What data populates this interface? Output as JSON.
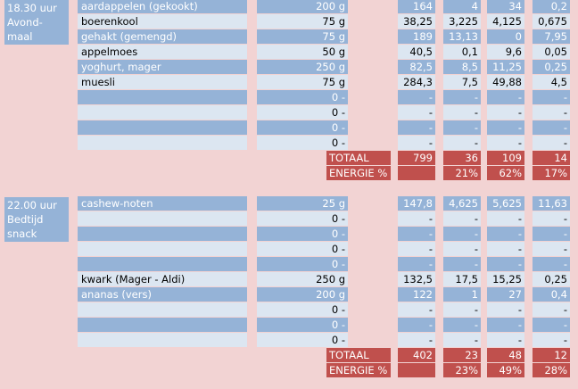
{
  "meals": [
    {
      "label_lines": [
        "18.30 uur",
        "Avond-",
        "maal"
      ],
      "rows": [
        {
          "food": "aardappelen (gekookt)",
          "amount": "200 g",
          "kcal": "164",
          "eiwit": "4",
          "kh": "34",
          "vet": "0,2",
          "style": "blue"
        },
        {
          "food": "boerenkool",
          "amount": "75 g",
          "kcal": "38,25",
          "eiwit": "3,225",
          "kh": "4,125",
          "vet": "0,675",
          "style": "light"
        },
        {
          "food": "gehakt (gemengd)",
          "amount": "75 g",
          "kcal": "189",
          "eiwit": "13,13",
          "kh": "0",
          "vet": "7,95",
          "style": "blue"
        },
        {
          "food": "appelmoes",
          "amount": "50 g",
          "kcal": "40,5",
          "eiwit": "0,1",
          "kh": "9,6",
          "vet": "0,05",
          "style": "light"
        },
        {
          "food": "yoghurt, mager",
          "amount": "250 g",
          "kcal": "82,5",
          "eiwit": "8,5",
          "kh": "11,25",
          "vet": "0,25",
          "style": "blue"
        },
        {
          "food": "muesli",
          "amount": "75 g",
          "kcal": "284,3",
          "eiwit": "7,5",
          "kh": "49,88",
          "vet": "4,5",
          "style": "light"
        },
        {
          "food": "",
          "amount": "0 -",
          "kcal": "-",
          "eiwit": "-",
          "kh": "-",
          "vet": "-",
          "style": "blue"
        },
        {
          "food": "",
          "amount": "0 -",
          "kcal": "-",
          "eiwit": "-",
          "kh": "-",
          "vet": "-",
          "style": "light"
        },
        {
          "food": "",
          "amount": "0 -",
          "kcal": "-",
          "eiwit": "-",
          "kh": "-",
          "vet": "-",
          "style": "blue"
        },
        {
          "food": "",
          "amount": "0 -",
          "kcal": "-",
          "eiwit": "-",
          "kh": "-",
          "vet": "-",
          "style": "light"
        }
      ],
      "totaal": {
        "label": "TOTAAL",
        "kcal": "799",
        "eiwit": "36",
        "kh": "109",
        "vet": "14"
      },
      "energie": {
        "label": "ENERGIE %",
        "kcal": "",
        "eiwit": "21%",
        "kh": "62%",
        "vet": "17%"
      }
    },
    {
      "label_lines": [
        "22.00 uur",
        "Bedtijd",
        "snack"
      ],
      "rows": [
        {
          "food": "cashew-noten",
          "amount": "25 g",
          "kcal": "147,8",
          "eiwit": "4,625",
          "kh": "5,625",
          "vet": "11,63",
          "style": "blue"
        },
        {
          "food": "",
          "amount": "0 -",
          "kcal": "-",
          "eiwit": "-",
          "kh": "-",
          "vet": "-",
          "style": "light"
        },
        {
          "food": "",
          "amount": "0 -",
          "kcal": "-",
          "eiwit": "-",
          "kh": "-",
          "vet": "-",
          "style": "blue"
        },
        {
          "food": "",
          "amount": "0 -",
          "kcal": "-",
          "eiwit": "-",
          "kh": "-",
          "vet": "-",
          "style": "light"
        },
        {
          "food": "",
          "amount": "0 -",
          "kcal": "-",
          "eiwit": "-",
          "kh": "-",
          "vet": "-",
          "style": "blue"
        },
        {
          "food": "kwark (Mager - Aldi)",
          "amount": "250 g",
          "kcal": "132,5",
          "eiwit": "17,5",
          "kh": "15,25",
          "vet": "0,25",
          "style": "light"
        },
        {
          "food": "ananas (vers)",
          "amount": "200 g",
          "kcal": "122",
          "eiwit": "1",
          "kh": "27",
          "vet": "0,4",
          "style": "blue"
        },
        {
          "food": "",
          "amount": "0 -",
          "kcal": "-",
          "eiwit": "-",
          "kh": "-",
          "vet": "-",
          "style": "light"
        },
        {
          "food": "",
          "amount": "0 -",
          "kcal": "-",
          "eiwit": "-",
          "kh": "-",
          "vet": "-",
          "style": "blue"
        },
        {
          "food": "",
          "amount": "0 -",
          "kcal": "-",
          "eiwit": "-",
          "kh": "-",
          "vet": "-",
          "style": "light"
        }
      ],
      "totaal": {
        "label": "TOTAAL",
        "kcal": "402",
        "eiwit": "23",
        "kh": "48",
        "vet": "12"
      },
      "energie": {
        "label": "ENERGIE %",
        "kcal": "",
        "eiwit": "23%",
        "kh": "49%",
        "vet": "28%"
      }
    }
  ],
  "colors": {
    "background": "#f2d3d3",
    "blue_row": "#95b3d7",
    "light_row": "#dce6f1",
    "total_red": "#c0504d"
  }
}
